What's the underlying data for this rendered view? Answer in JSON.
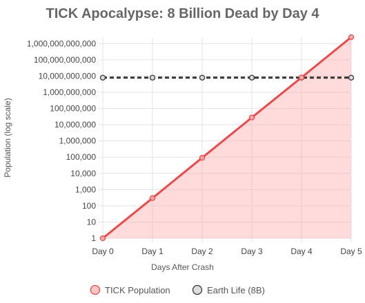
{
  "chart_data": {
    "type": "line",
    "title": "TICK Apocalypse: 8 Billion Dead by Day 4",
    "xlabel": "Days After Crash",
    "ylabel": "Population (log scale)",
    "y_scale": "log",
    "categories": [
      "Day 0",
      "Day 1",
      "Day 2",
      "Day 3",
      "Day 4",
      "Day 5"
    ],
    "y_ticks": [
      1,
      10,
      100,
      1000,
      10000,
      100000,
      1000000,
      10000000,
      100000000,
      1000000000,
      10000000000,
      100000000000,
      1000000000000
    ],
    "y_tick_labels": [
      "1",
      "10",
      "100",
      "1,000",
      "10,000",
      "100,000",
      "1,000,000",
      "10,000,000",
      "100,000,000",
      "1,000,000,000",
      "10,000,000,000",
      "100,000,000,000",
      "1,000,000,000,000"
    ],
    "ylim": [
      1,
      2500000000000
    ],
    "grid": true,
    "legend_position": "bottom",
    "series": [
      {
        "name": "TICK Population",
        "values": [
          1,
          300,
          92000,
          28000000,
          8200000000,
          2500000000000
        ],
        "color": "#f04646",
        "fill": "rgba(255,160,160,0.38)",
        "style": "solid"
      },
      {
        "name": "Earth Life (8B)",
        "values": [
          8000000000,
          8000000000,
          8000000000,
          8000000000,
          8000000000,
          8000000000
        ],
        "color": "#333333",
        "fill": "#dddddd",
        "style": "dashed"
      }
    ]
  }
}
